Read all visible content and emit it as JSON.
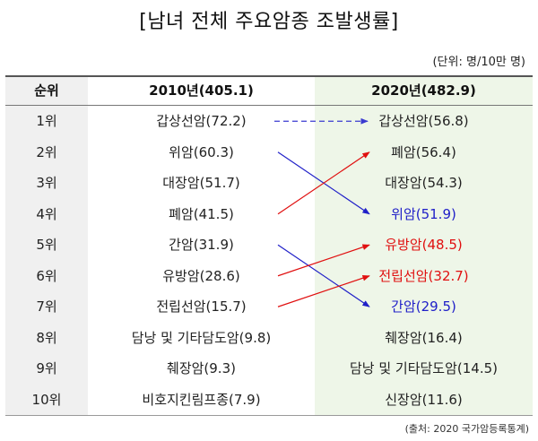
{
  "title": "[남녀 전체 주요암종 조발생률]",
  "unit": "(단위: 명/10만 명)",
  "headers": {
    "rank": "순위",
    "y2010": "2010년(405.1)",
    "y2020": "2020년(482.9)"
  },
  "rows": [
    {
      "rank": "1위",
      "y2010": "갑상선암(72.2)",
      "y2020": "갑상선암(56.8)",
      "y2020_color": "default"
    },
    {
      "rank": "2위",
      "y2010": "위암(60.3)",
      "y2020": "폐암(56.4)",
      "y2020_color": "default"
    },
    {
      "rank": "3위",
      "y2010": "대장암(51.7)",
      "y2020": "대장암(54.3)",
      "y2020_color": "default"
    },
    {
      "rank": "4위",
      "y2010": "폐암(41.5)",
      "y2020": "위암(51.9)",
      "y2020_color": "blue"
    },
    {
      "rank": "5위",
      "y2010": "간암(31.9)",
      "y2020": "유방암(48.5)",
      "y2020_color": "red"
    },
    {
      "rank": "6위",
      "y2010": "유방암(28.6)",
      "y2020": "전립선암(32.7)",
      "y2020_color": "red"
    },
    {
      "rank": "7위",
      "y2010": "전립선암(15.7)",
      "y2020": "간암(29.5)",
      "y2020_color": "blue"
    },
    {
      "rank": "8위",
      "y2010": "담낭 및 기타담도암(9.8)",
      "y2020": "췌장암(16.4)",
      "y2020_color": "default"
    },
    {
      "rank": "9위",
      "y2010": "췌장암(9.3)",
      "y2020": "담낭 및 기타담도암(14.5)",
      "y2020_color": "default"
    },
    {
      "rank": "10위",
      "y2010": "비호지킨림프종(7.9)",
      "y2020": "신장암(11.6)",
      "y2020_color": "default"
    }
  ],
  "arrows": [
    {
      "from_rank": 1,
      "to_rank": 1,
      "color": "#3a3ad0",
      "style": "dashed"
    },
    {
      "from_rank": 2,
      "to_rank": 4,
      "color": "#2020c8",
      "style": "solid"
    },
    {
      "from_rank": 4,
      "to_rank": 2,
      "color": "#e01010",
      "style": "solid"
    },
    {
      "from_rank": 5,
      "to_rank": 7,
      "color": "#2020c8",
      "style": "solid"
    },
    {
      "from_rank": 6,
      "to_rank": 5,
      "color": "#e01010",
      "style": "solid"
    },
    {
      "from_rank": 7,
      "to_rank": 6,
      "color": "#e01010",
      "style": "solid"
    }
  ],
  "colors": {
    "blue": "#2020c8",
    "red": "#e01010",
    "header_left_bg": "#f0f0f0",
    "header_right_bg": "#eef6e8"
  },
  "source": "(출처: 2020 국가암등록통계)"
}
